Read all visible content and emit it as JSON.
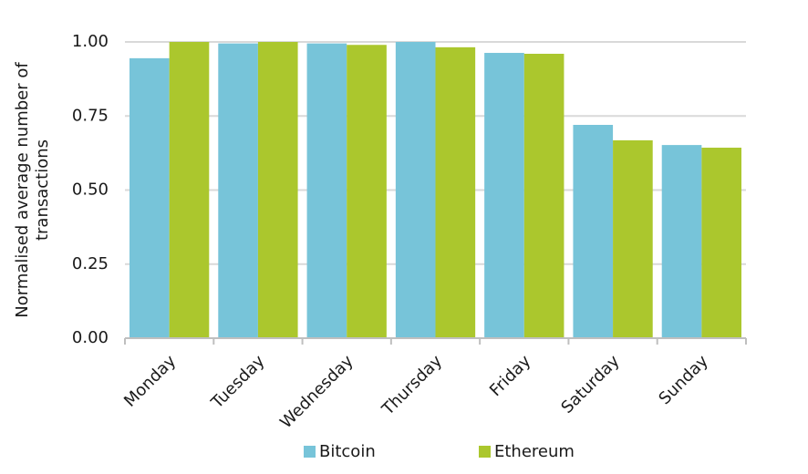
{
  "chart_data": {
    "type": "bar",
    "y_label": [
      "Normalised average number of",
      "transactions"
    ],
    "categories": [
      "Monday",
      "Tuesday",
      "Wednesday",
      "Thursday",
      "Friday",
      "Saturday",
      "Sunday"
    ],
    "series": [
      {
        "name": "Bitcoin",
        "color": "#77c4d9",
        "values": [
          0.945,
          0.995,
          0.995,
          1.0,
          0.963,
          0.72,
          0.652
        ]
      },
      {
        "name": "Ethereum",
        "color": "#abc72d",
        "values": [
          1.0,
          1.0,
          0.99,
          0.982,
          0.96,
          0.668,
          0.643
        ]
      }
    ],
    "ylim": [
      0,
      1
    ],
    "yticks": [
      {
        "value": 0,
        "label": "0.00"
      },
      {
        "value": 0.25,
        "label": "0.25"
      },
      {
        "value": 0.5,
        "label": "0.50"
      },
      {
        "value": 0.75,
        "label": "0.75"
      },
      {
        "value": 1,
        "label": "1.00"
      }
    ],
    "grid": true,
    "legend": "bottom"
  }
}
